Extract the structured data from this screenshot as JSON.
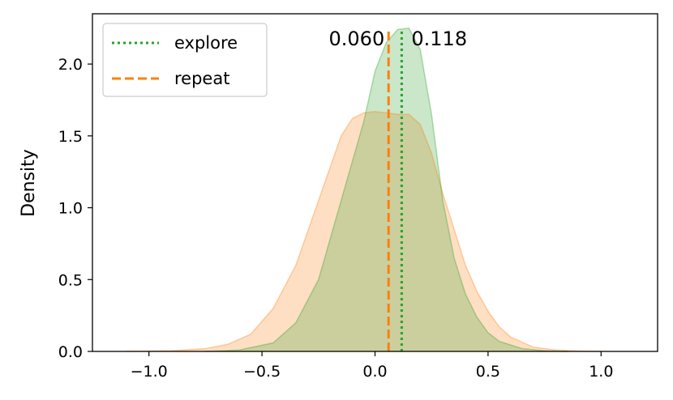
{
  "chart_data": {
    "type": "area",
    "ylabel": "Density",
    "xlim": [
      -1.25,
      1.25
    ],
    "ylim": [
      0,
      2.35
    ],
    "xticks": [
      -1.0,
      -0.5,
      0.0,
      0.5,
      1.0
    ],
    "xtick_labels": [
      "−1.0",
      "−0.5",
      "0.0",
      "0.5",
      "1.0"
    ],
    "yticks": [
      0.0,
      0.5,
      1.0,
      1.5,
      2.0
    ],
    "ytick_labels": [
      "0.0",
      "0.5",
      "1.0",
      "1.5",
      "2.0"
    ],
    "legend_position": "top-left",
    "series": [
      {
        "name": "repeat",
        "color": "#ff7f0e",
        "line_style": "dashed",
        "mean": 0.06,
        "mean_label": "0.060",
        "x": [
          -1.1,
          -0.9,
          -0.75,
          -0.65,
          -0.55,
          -0.45,
          -0.35,
          -0.25,
          -0.15,
          -0.1,
          -0.05,
          0.0,
          0.05,
          0.1,
          0.15,
          0.2,
          0.25,
          0.3,
          0.35,
          0.4,
          0.45,
          0.5,
          0.55,
          0.6,
          0.7,
          0.8,
          0.9,
          1.0
        ],
        "y": [
          0.0,
          0.005,
          0.02,
          0.05,
          0.12,
          0.3,
          0.6,
          1.05,
          1.5,
          1.62,
          1.66,
          1.67,
          1.66,
          1.65,
          1.65,
          1.58,
          1.38,
          1.1,
          0.85,
          0.6,
          0.42,
          0.28,
          0.17,
          0.1,
          0.03,
          0.01,
          0.003,
          0.0
        ]
      },
      {
        "name": "explore",
        "color": "#2ca02c",
        "line_style": "dotted",
        "mean": 0.118,
        "mean_label": "0.118",
        "x": [
          -0.75,
          -0.6,
          -0.45,
          -0.35,
          -0.25,
          -0.15,
          -0.05,
          0.0,
          0.05,
          0.1,
          0.15,
          0.2,
          0.25,
          0.3,
          0.35,
          0.4,
          0.45,
          0.5,
          0.55,
          0.65,
          0.75,
          0.85
        ],
        "y": [
          0.0,
          0.01,
          0.06,
          0.2,
          0.5,
          1.05,
          1.6,
          1.95,
          2.15,
          2.24,
          2.25,
          2.1,
          1.65,
          1.05,
          0.65,
          0.4,
          0.24,
          0.13,
          0.07,
          0.02,
          0.005,
          0.0
        ]
      }
    ]
  }
}
